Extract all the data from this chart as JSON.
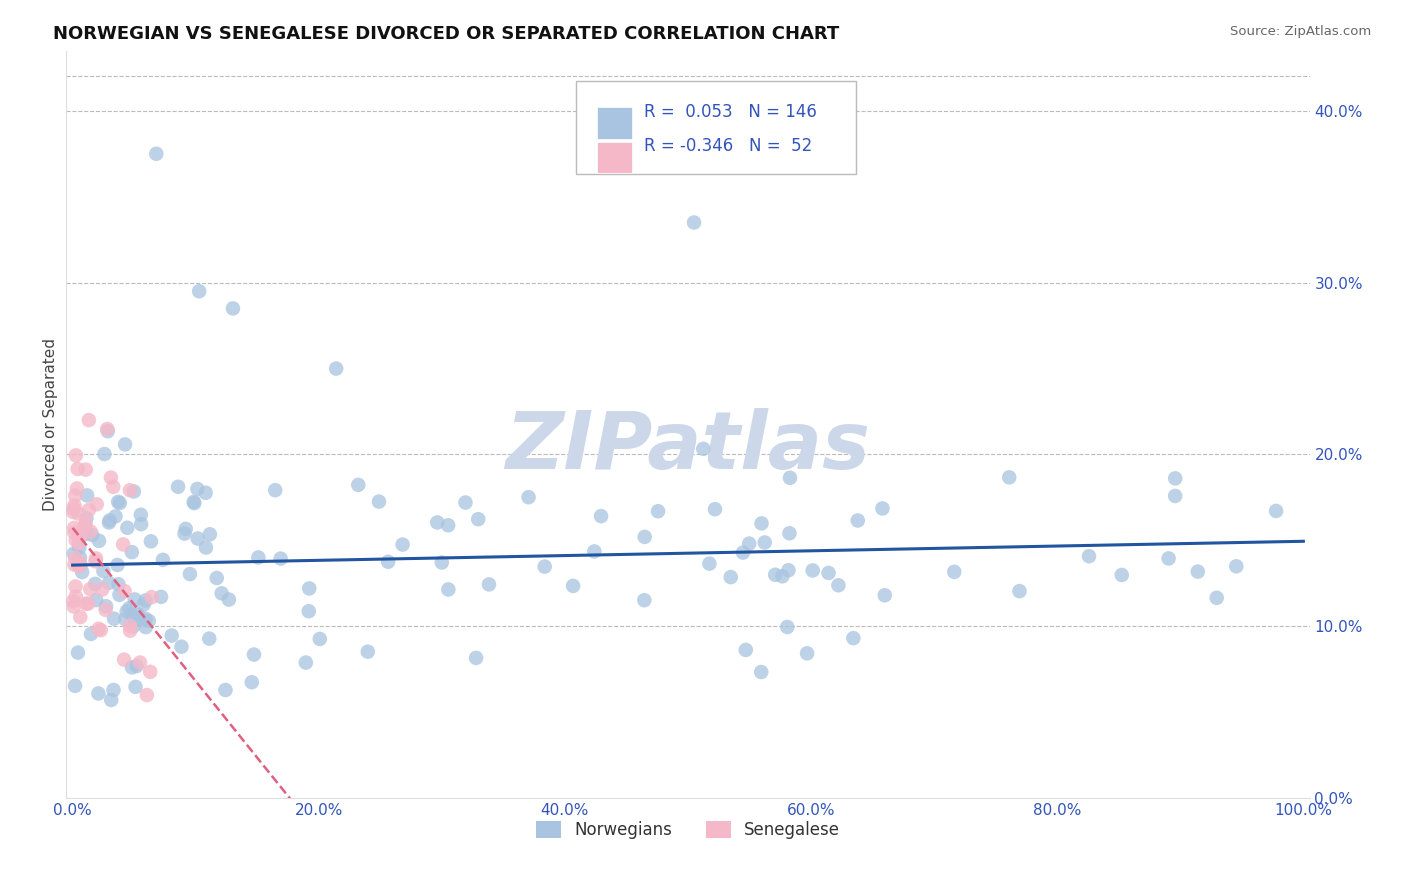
{
  "title": "NORWEGIAN VS SENEGALESE DIVORCED OR SEPARATED CORRELATION CHART",
  "source": "Source: ZipAtlas.com",
  "ylabel": "Divorced or Separated",
  "legend_R": [
    "0.053",
    "-0.346"
  ],
  "legend_N": [
    "146",
    "52"
  ],
  "blue_color": "#a8c4e0",
  "pink_color": "#f5b8c8",
  "blue_line_color": "#2255a0",
  "pink_line_color": "#e06080",
  "label_color": "#3355bb",
  "watermark_color": "#ccd8ea",
  "xlim": [
    0.0,
    1.0
  ],
  "ylim": [
    0.0,
    0.42
  ],
  "ytick_vals": [
    0.0,
    0.1,
    0.2,
    0.3,
    0.4
  ],
  "ytick_labels": [
    "0.0%",
    "10.0%",
    "20.0%",
    "30.0%",
    "40.0%"
  ],
  "xtick_vals": [
    0.0,
    0.2,
    0.4,
    0.6,
    0.8,
    1.0
  ],
  "xtick_labels": [
    "0.0%",
    "20.0%",
    "40.0%",
    "60.0%",
    "80.0%",
    "100.0%"
  ],
  "norw_R": 0.053,
  "norw_N": 146,
  "sene_R": -0.346,
  "sene_N": 52
}
